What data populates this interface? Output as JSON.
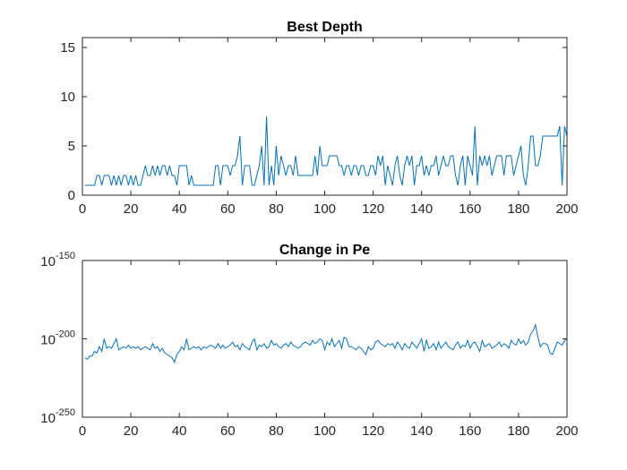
{
  "chart_data": [
    {
      "type": "line",
      "title": "Best Depth",
      "x": [
        1,
        2,
        3,
        4,
        5,
        6,
        7,
        8,
        9,
        10,
        11,
        12,
        13,
        14,
        15,
        16,
        17,
        18,
        19,
        20,
        21,
        22,
        23,
        24,
        25,
        26,
        27,
        28,
        29,
        30,
        31,
        32,
        33,
        34,
        35,
        36,
        37,
        38,
        39,
        40,
        41,
        42,
        43,
        44,
        45,
        46,
        47,
        48,
        49,
        50,
        51,
        52,
        53,
        54,
        55,
        56,
        57,
        58,
        59,
        60,
        61,
        62,
        63,
        64,
        65,
        66,
        67,
        68,
        69,
        70,
        71,
        72,
        73,
        74,
        75,
        76,
        77,
        78,
        79,
        80,
        81,
        82,
        83,
        84,
        85,
        86,
        87,
        88,
        89,
        90,
        91,
        92,
        93,
        94,
        95,
        96,
        97,
        98,
        99,
        100,
        101,
        102,
        103,
        104,
        105,
        106,
        107,
        108,
        109,
        110,
        111,
        112,
        113,
        114,
        115,
        116,
        117,
        118,
        119,
        120,
        121,
        122,
        123,
        124,
        125,
        126,
        127,
        128,
        129,
        130,
        131,
        132,
        133,
        134,
        135,
        136,
        137,
        138,
        139,
        140,
        141,
        142,
        143,
        144,
        145,
        146,
        147,
        148,
        149,
        150,
        151,
        152,
        153,
        154,
        155,
        156,
        157,
        158,
        159,
        160,
        161,
        162,
        163,
        164,
        165,
        166,
        167,
        168,
        169,
        170,
        171,
        172,
        173,
        174,
        175,
        176,
        177,
        178,
        179,
        180,
        181,
        182,
        183,
        184,
        185,
        186,
        187,
        188,
        189,
        190,
        191,
        192,
        193,
        194,
        195,
        196,
        197,
        198,
        199,
        200
      ],
      "series": [
        {
          "color": "#0072bd",
          "values": [
            1,
            1,
            1,
            1,
            1,
            2,
            2,
            1,
            2,
            2,
            2,
            1,
            2,
            1,
            2,
            1,
            2,
            2,
            1,
            2,
            1,
            2,
            1,
            1,
            2,
            3,
            2,
            2,
            3,
            2,
            3,
            2,
            3,
            3,
            2,
            3,
            2,
            2,
            1,
            3,
            3,
            3,
            3,
            1,
            2,
            1,
            1,
            1,
            1,
            1,
            1,
            1,
            1,
            1,
            3,
            3,
            1,
            3,
            3,
            3,
            2,
            3,
            3,
            4,
            6,
            1,
            3,
            3,
            3,
            1,
            1,
            2,
            3,
            5,
            1,
            8,
            1,
            3,
            1,
            5,
            2,
            4,
            3,
            2,
            3,
            3,
            2,
            4,
            2,
            2,
            2,
            2,
            2,
            2,
            2,
            4,
            2,
            5,
            3,
            3,
            3,
            4,
            4,
            4,
            4,
            3,
            3,
            2,
            3,
            3,
            2,
            3,
            3,
            2,
            3,
            3,
            2,
            2,
            3,
            3,
            2,
            4,
            3,
            4,
            1,
            3,
            2,
            1,
            3,
            4,
            2,
            1,
            3,
            4,
            3,
            4,
            1,
            3,
            3,
            4,
            2,
            3,
            2,
            3,
            3,
            4,
            2,
            3,
            4,
            3,
            3,
            4,
            4,
            2,
            1,
            3,
            4,
            1,
            4,
            3,
            2,
            7,
            1,
            4,
            3,
            4,
            3,
            4,
            2,
            3,
            4,
            4,
            4,
            2,
            4,
            4,
            4,
            2,
            3,
            4,
            5,
            2,
            1,
            3,
            6,
            6,
            3,
            3,
            4,
            6,
            6,
            6,
            6,
            6,
            6,
            6,
            7,
            1,
            7,
            6
          ]
        }
      ],
      "xlim": [
        0,
        200
      ],
      "xticks": [
        0,
        20,
        40,
        60,
        80,
        100,
        120,
        140,
        160,
        180,
        200
      ],
      "ylim": [
        0,
        16
      ],
      "yticks": [
        0,
        5,
        10,
        15
      ],
      "yscale": "linear"
    },
    {
      "type": "line",
      "title": "Change in Pe",
      "x": [
        1,
        2,
        3,
        4,
        5,
        6,
        7,
        8,
        9,
        10,
        11,
        12,
        13,
        14,
        15,
        16,
        17,
        18,
        19,
        20,
        21,
        22,
        23,
        24,
        25,
        26,
        27,
        28,
        29,
        30,
        31,
        32,
        33,
        34,
        35,
        36,
        37,
        38,
        39,
        40,
        41,
        42,
        43,
        44,
        45,
        46,
        47,
        48,
        49,
        50,
        51,
        52,
        53,
        54,
        55,
        56,
        57,
        58,
        59,
        60,
        61,
        62,
        63,
        64,
        65,
        66,
        67,
        68,
        69,
        70,
        71,
        72,
        73,
        74,
        75,
        76,
        77,
        78,
        79,
        80,
        81,
        82,
        83,
        84,
        85,
        86,
        87,
        88,
        89,
        90,
        91,
        92,
        93,
        94,
        95,
        96,
        97,
        98,
        99,
        100,
        101,
        102,
        103,
        104,
        105,
        106,
        107,
        108,
        109,
        110,
        111,
        112,
        113,
        114,
        115,
        116,
        117,
        118,
        119,
        120,
        121,
        122,
        123,
        124,
        125,
        126,
        127,
        128,
        129,
        130,
        131,
        132,
        133,
        134,
        135,
        136,
        137,
        138,
        139,
        140,
        141,
        142,
        143,
        144,
        145,
        146,
        147,
        148,
        149,
        150,
        151,
        152,
        153,
        154,
        155,
        156,
        157,
        158,
        159,
        160,
        161,
        162,
        163,
        164,
        165,
        166,
        167,
        168,
        169,
        170,
        171,
        172,
        173,
        174,
        175,
        176,
        177,
        178,
        179,
        180,
        181,
        182,
        183,
        184,
        185,
        186,
        187,
        188,
        189,
        190,
        191,
        192,
        193,
        194,
        195,
        196,
        197,
        198,
        199,
        200
      ],
      "series": [
        {
          "color": "#0072bd",
          "values": [
            1e-212,
            1e-213,
            1e-211,
            1e-211,
            1e-208,
            1e-209,
            1e-205,
            1e-208,
            1e-200,
            1e-206,
            1e-205,
            1e-206,
            1e-203,
            1e-200,
            1e-207,
            1e-206,
            1e-205,
            1e-206,
            1e-204,
            1e-206,
            1e-205,
            1e-206,
            1e-205,
            1e-207,
            1e-206,
            1e-205,
            1e-206,
            1e-207,
            1e-203,
            1e-206,
            1e-205,
            1e-208,
            1e-206,
            1e-209,
            1e-210,
            1e-211,
            1e-212,
            1e-215,
            1e-210,
            1e-208,
            1e-205,
            1e-207,
            1e-200,
            1e-207,
            1e-206,
            1e-205,
            1e-206,
            1e-205,
            1e-207,
            1e-205,
            1e-206,
            1e-205,
            1e-204,
            1e-205,
            1e-206,
            1e-203,
            1e-206,
            1e-204,
            1e-206,
            1e-205,
            1e-204,
            1e-202,
            1e-205,
            1e-204,
            1e-207,
            1e-203,
            1e-205,
            1e-206,
            1e-207,
            1e-202,
            1e-200,
            1e-207,
            1e-204,
            1e-205,
            1e-203,
            1e-206,
            1e-205,
            1e-201,
            1e-204,
            1e-203,
            1e-205,
            1e-206,
            1e-204,
            1e-203,
            1e-205,
            1e-202,
            1e-204,
            1e-205,
            1e-206,
            1e-205,
            1e-203,
            1e-202,
            1e-203,
            1e-204,
            1e-201,
            1e-203,
            1e-202,
            1e-200,
            1e-201,
            1e-207,
            1e-202,
            1e-204,
            1e-200,
            1e-205,
            1e-203,
            1e-201,
            1e-206,
            1e-199,
            1e-200,
            1e-205,
            1e-205,
            1e-206,
            1e-207,
            1e-205,
            1e-206,
            1e-208,
            1e-210,
            1e-205,
            1e-207,
            1e-206,
            1e-202,
            1e-201,
            1e-203,
            1e-204,
            1e-205,
            1e-203,
            1e-204,
            1e-203,
            1e-206,
            1e-202,
            1e-204,
            1e-207,
            1e-203,
            1e-205,
            1e-206,
            1e-202,
            1e-204,
            1e-206,
            1e-203,
            1e-200,
            1e-208,
            1e-201,
            1e-206,
            1e-205,
            1e-203,
            1e-207,
            1e-202,
            1e-206,
            1e-204,
            1e-202,
            1e-205,
            1e-206,
            1e-207,
            1e-204,
            1e-202,
            1e-206,
            1e-204,
            1e-205,
            1e-201,
            1e-206,
            1e-203,
            1e-202,
            1e-205,
            1e-208,
            1e-201,
            1e-205,
            1e-204,
            1e-203,
            1e-206,
            1e-205,
            1e-204,
            1e-202,
            1e-205,
            1e-203,
            1e-204,
            1e-206,
            1e-201,
            1e-203,
            1e-204,
            1e-200,
            1e-203,
            1e-201,
            1e-204,
            1e-202,
            1e-197,
            1e-195,
            1e-191,
            1e-199,
            1e-205,
            1e-203,
            1e-203,
            1e-204,
            1e-209,
            1e-210,
            1e-206,
            1e-202,
            1e-203,
            1e-204,
            1e-201,
            1e-200
          ]
        }
      ],
      "xlim": [
        0,
        200
      ],
      "xticks": [
        0,
        20,
        40,
        60,
        80,
        100,
        120,
        140,
        160,
        180,
        200
      ],
      "ylim": [
        1e-250,
        1e-150
      ],
      "yticks": [
        {
          "value": 1e-250,
          "label": "10",
          "superscript": "-250"
        },
        {
          "value": 1e-200,
          "label": "10",
          "superscript": "-200"
        },
        {
          "value": 1e-150,
          "label": "10",
          "superscript": "-150"
        }
      ],
      "yscale": "log"
    }
  ]
}
